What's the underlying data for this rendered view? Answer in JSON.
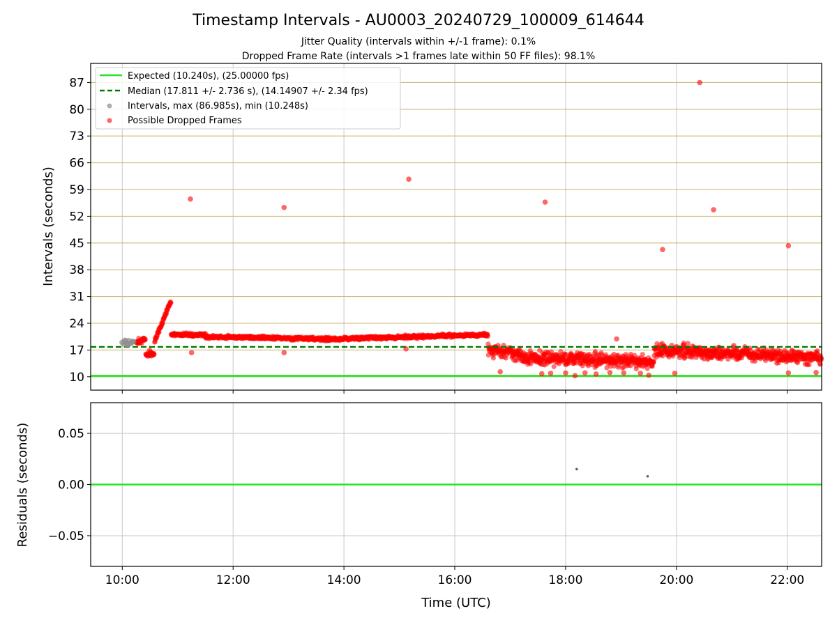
{
  "title": "Timestamp Intervals - AU0003_20240729_100009_614644",
  "subtitle_1": "Jitter Quality (intervals within +/-1 frame): 0.1%",
  "subtitle_2": "Dropped Frame Rate (intervals >1 frames late within 50 FF files): 98.1%",
  "colors": {
    "expected": "#22e622",
    "median": "#007a00",
    "intervals": "#8c8c8c",
    "dropped": "#ff0000",
    "hgrid": "#cdb97a",
    "vgrid": "#c8c8c8"
  },
  "chart_data": [
    {
      "type": "scatter",
      "name": "intervals-panel",
      "ylabel": "Intervals (seconds)",
      "xlim_hours": [
        9.43,
        22.62
      ],
      "ylim": [
        6.5,
        92
      ],
      "y_ticks": [
        10,
        17,
        24,
        31,
        38,
        45,
        52,
        59,
        66,
        73,
        80,
        87
      ],
      "x_ticks": [
        {
          "value": 10,
          "label": "10:00"
        },
        {
          "value": 12,
          "label": "12:00"
        },
        {
          "value": 14,
          "label": "14:00"
        },
        {
          "value": 16,
          "label": "16:00"
        },
        {
          "value": 18,
          "label": "18:00"
        },
        {
          "value": 20,
          "label": "20:00"
        },
        {
          "value": 22,
          "label": "22:00"
        }
      ],
      "grid": true,
      "legend_position": "top-left",
      "legend": [
        {
          "label": "Expected (10.240s), (25.00000 fps)",
          "kind": "line-solid"
        },
        {
          "label": "Median (17.811 +/- 2.736 s), (14.14907 +/- 2.34 fps)",
          "kind": "line-dashed"
        },
        {
          "label": "Intervals, max (86.985s), min (10.248s)",
          "kind": "dot-grey"
        },
        {
          "label": "Possible Dropped Frames",
          "kind": "dot-red"
        }
      ],
      "reference_lines": {
        "expected": 10.24,
        "median": 17.811
      },
      "trend_segments": [
        {
          "from_hour": 10.25,
          "to_hour": 10.42,
          "from_value": 19.0,
          "to_value": 20.0,
          "spread": 1.0
        },
        {
          "from_hour": 10.42,
          "to_hour": 10.58,
          "from_value": 16.0,
          "to_value": 16.0,
          "spread": 1.2
        },
        {
          "from_hour": 10.58,
          "to_hour": 10.88,
          "from_value": 19.0,
          "to_value": 30.0,
          "spread": 0.8
        },
        {
          "from_hour": 10.88,
          "to_hour": 11.5,
          "from_value": 21.0,
          "to_value": 21.0,
          "spread": 0.6
        },
        {
          "from_hour": 11.5,
          "to_hour": 14.0,
          "from_value": 20.5,
          "to_value": 19.8,
          "spread": 0.6
        },
        {
          "from_hour": 14.0,
          "to_hour": 16.6,
          "from_value": 20.0,
          "to_value": 21.0,
          "spread": 0.6
        },
        {
          "from_hour": 16.6,
          "to_hour": 17.2,
          "from_value": 17.0,
          "to_value": 16.0,
          "spread": 2.4
        },
        {
          "from_hour": 17.2,
          "to_hour": 19.6,
          "from_value": 15.0,
          "to_value": 14.0,
          "spread": 2.6
        },
        {
          "from_hour": 19.6,
          "to_hour": 22.62,
          "from_value": 17.0,
          "to_value": 15.0,
          "spread": 2.4
        }
      ],
      "interval_points": [
        {
          "x": 10.0,
          "y": 19.0
        },
        {
          "x": 10.03,
          "y": 18.6
        },
        {
          "x": 10.06,
          "y": 19.3
        },
        {
          "x": 10.09,
          "y": 18.2
        },
        {
          "x": 10.12,
          "y": 19.4
        },
        {
          "x": 10.15,
          "y": 18.7
        },
        {
          "x": 10.18,
          "y": 19.1
        },
        {
          "x": 10.05,
          "y": 19.5
        },
        {
          "x": 10.1,
          "y": 18.4
        },
        {
          "x": 10.2,
          "y": 19.2
        }
      ],
      "dropped_outliers": [
        {
          "x": 11.23,
          "y": 56.5
        },
        {
          "x": 12.92,
          "y": 54.3
        },
        {
          "x": 15.17,
          "y": 61.7
        },
        {
          "x": 17.63,
          "y": 55.7
        },
        {
          "x": 19.75,
          "y": 43.3
        },
        {
          "x": 20.42,
          "y": 86.985
        },
        {
          "x": 20.67,
          "y": 53.7
        },
        {
          "x": 22.02,
          "y": 44.3
        },
        {
          "x": 11.25,
          "y": 16.3
        },
        {
          "x": 12.92,
          "y": 16.3
        },
        {
          "x": 15.12,
          "y": 17.3
        },
        {
          "x": 16.82,
          "y": 11.3
        },
        {
          "x": 17.57,
          "y": 10.8
        },
        {
          "x": 17.73,
          "y": 10.9
        },
        {
          "x": 18.0,
          "y": 11.0
        },
        {
          "x": 18.17,
          "y": 10.3
        },
        {
          "x": 18.35,
          "y": 11.0
        },
        {
          "x": 18.55,
          "y": 10.7
        },
        {
          "x": 18.8,
          "y": 11.1
        },
        {
          "x": 19.05,
          "y": 11.0
        },
        {
          "x": 19.35,
          "y": 10.9
        },
        {
          "x": 19.5,
          "y": 10.4
        },
        {
          "x": 19.97,
          "y": 10.9
        },
        {
          "x": 22.02,
          "y": 11.0
        },
        {
          "x": 22.52,
          "y": 11.1
        },
        {
          "x": 18.92,
          "y": 19.9
        }
      ]
    },
    {
      "type": "scatter",
      "name": "residuals-panel",
      "xlabel": "Time (UTC)",
      "ylabel": "Residuals (seconds)",
      "xlim_hours": [
        9.43,
        22.62
      ],
      "ylim": [
        -0.08,
        0.08
      ],
      "y_ticks": [
        {
          "value": 0.05,
          "label": "0.05"
        },
        {
          "value": 0.0,
          "label": "0.00"
        },
        {
          "value": -0.05,
          "label": "−0.05"
        }
      ],
      "x_ticks": [
        {
          "value": 10,
          "label": "10:00"
        },
        {
          "value": 12,
          "label": "12:00"
        },
        {
          "value": 14,
          "label": "14:00"
        },
        {
          "value": 16,
          "label": "16:00"
        },
        {
          "value": 18,
          "label": "18:00"
        },
        {
          "value": 20,
          "label": "20:00"
        },
        {
          "value": 22,
          "label": "22:00"
        }
      ],
      "grid": true,
      "zero_line": 0.0,
      "points": [
        {
          "x": 18.2,
          "y": 0.015
        },
        {
          "x": 19.48,
          "y": 0.008
        }
      ]
    }
  ]
}
